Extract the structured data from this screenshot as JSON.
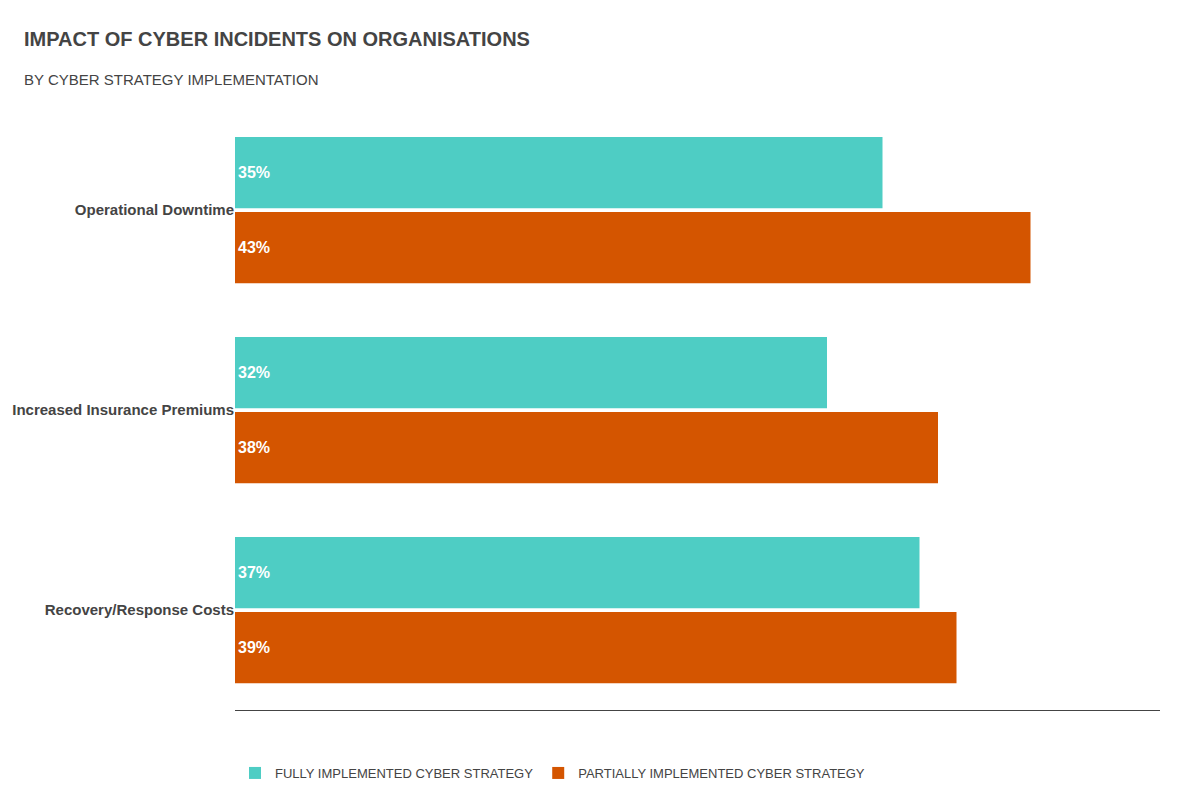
{
  "chart_data": {
    "type": "bar",
    "orientation": "horizontal",
    "title": "IMPACT OF CYBER INCIDENTS ON ORGANISATIONS",
    "subtitle": "BY CYBER STRATEGY IMPLEMENTATION",
    "categories": [
      "Operational Downtime",
      "Increased Insurance Premiums",
      "Recovery/Response Costs"
    ],
    "series": [
      {
        "name": "FULLY IMPLEMENTED CYBER STRATEGY",
        "color": "#4ecdc4",
        "values": [
          35,
          32,
          37
        ],
        "value_labels": [
          "35%",
          "32%",
          "37%"
        ]
      },
      {
        "name": "PARTIALLY IMPLEMENTED CYBER STRATEGY",
        "color": "#d45500",
        "values": [
          43,
          38,
          39
        ],
        "value_labels": [
          "43%",
          "38%",
          "39%"
        ]
      }
    ],
    "xlim": [
      0,
      50
    ],
    "grid": false,
    "tick_labels": "y",
    "data_labels": true,
    "legend": "bottom"
  }
}
